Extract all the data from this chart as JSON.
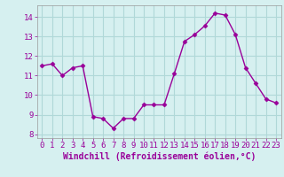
{
  "x": [
    0,
    1,
    2,
    3,
    4,
    5,
    6,
    7,
    8,
    9,
    10,
    11,
    12,
    13,
    14,
    15,
    16,
    17,
    18,
    19,
    20,
    21,
    22,
    23
  ],
  "y": [
    11.5,
    11.6,
    11.0,
    11.4,
    11.5,
    8.9,
    8.8,
    8.3,
    8.8,
    8.8,
    9.5,
    9.5,
    9.5,
    11.1,
    12.75,
    13.1,
    13.55,
    14.2,
    14.1,
    13.1,
    11.4,
    10.6,
    9.8,
    9.6
  ],
  "line_color": "#990099",
  "marker": "D",
  "marker_size": 2.5,
  "bg_color": "#d6f0f0",
  "grid_color": "#b0d8d8",
  "xlabel": "Windchill (Refroidissement éolien,°C)",
  "xlabel_fontsize": 7,
  "tick_fontsize": 6.5,
  "ylim": [
    7.8,
    14.6
  ],
  "yticks": [
    8,
    9,
    10,
    11,
    12,
    13,
    14
  ],
  "xlim": [
    -0.5,
    23.5
  ],
  "xticks": [
    0,
    1,
    2,
    3,
    4,
    5,
    6,
    7,
    8,
    9,
    10,
    11,
    12,
    13,
    14,
    15,
    16,
    17,
    18,
    19,
    20,
    21,
    22,
    23
  ],
  "spine_color": "#999999",
  "linewidth": 1.0
}
